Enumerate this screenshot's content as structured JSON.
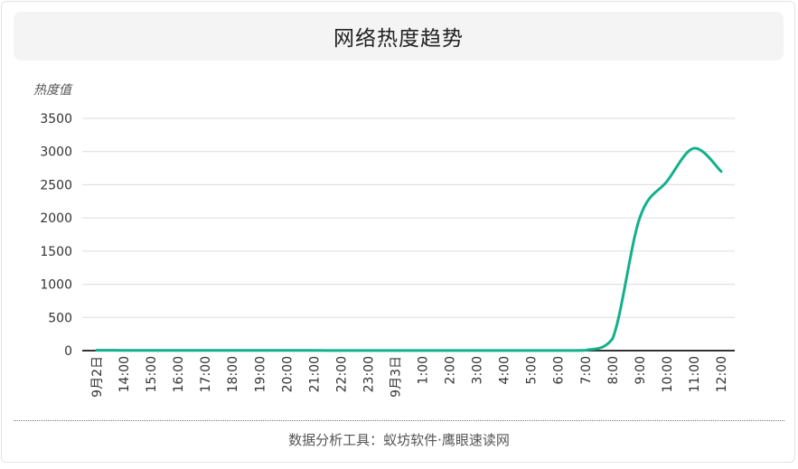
{
  "title": "网络热度趋势",
  "footer": "数据分析工具：蚁坊软件·鹰眼速读网",
  "colors": {
    "line": "#12b08c",
    "grid": "#dcdcdc",
    "axis": "#333333",
    "title_bg": "#f4f4f4"
  },
  "chart_data": {
    "type": "line",
    "title": "网络热度趋势",
    "ylabel": "热度值",
    "xlabel": "",
    "ylim": [
      0,
      3500
    ],
    "yticks": [
      0,
      500,
      1000,
      1500,
      2000,
      2500,
      3000,
      3500
    ],
    "grid": true,
    "categories": [
      "9月2日",
      "14:00",
      "15:00",
      "16:00",
      "17:00",
      "18:00",
      "19:00",
      "20:00",
      "21:00",
      "22:00",
      "23:00",
      "9月3日",
      "1:00",
      "2:00",
      "3:00",
      "4:00",
      "5:00",
      "6:00",
      "7:00",
      "8:00",
      "9:00",
      "10:00",
      "11:00",
      "12:00"
    ],
    "series": [
      {
        "values": [
          5,
          4,
          3,
          3,
          3,
          3,
          3,
          4,
          3,
          2,
          2,
          2,
          2,
          2,
          2,
          2,
          2,
          2,
          5,
          180,
          2000,
          2550,
          3050,
          2700
        ]
      }
    ]
  }
}
